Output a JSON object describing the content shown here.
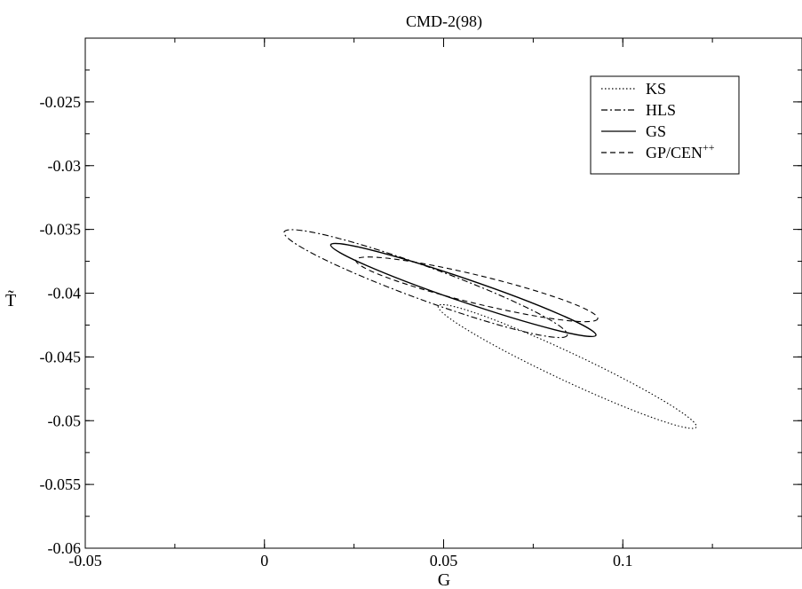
{
  "chart_data": {
    "type": "line",
    "title": "CMD-2(98)",
    "xlabel": "G",
    "ylabel": "T̃",
    "xlim": [
      -0.05,
      0.15
    ],
    "ylim": [
      -0.06,
      -0.02
    ],
    "x_ticks": [
      -0.05,
      0,
      0.05,
      0.1
    ],
    "x_tick_labels": [
      "-0.05",
      "0",
      "0.05",
      "0.1"
    ],
    "y_ticks": [
      -0.06,
      -0.055,
      -0.05,
      -0.045,
      -0.04,
      -0.035,
      -0.03,
      -0.025
    ],
    "y_tick_labels": [
      "-0.06",
      "-0.055",
      "-0.05",
      "-0.045",
      "-0.04",
      "-0.035",
      "-0.03",
      "-0.025"
    ],
    "grid": false,
    "legend_position": "top-right",
    "series": [
      {
        "name": "KS",
        "style": "dotted",
        "shape": "ellipse",
        "end_a": [
          0.0485,
          -0.041
        ],
        "end_b": [
          0.1205,
          -0.0505
        ],
        "half_width": 0.0011
      },
      {
        "name": "HLS",
        "style": "dashdot",
        "shape": "ellipse",
        "end_a": [
          0.0055,
          -0.0352
        ],
        "end_b": [
          0.0845,
          -0.0433
        ],
        "half_width": 0.0013
      },
      {
        "name": "GS",
        "style": "solid",
        "shape": "ellipse",
        "end_a": [
          0.0185,
          -0.0362
        ],
        "end_b": [
          0.0925,
          -0.0433
        ],
        "half_width": 0.0009
      },
      {
        "name": "GP/CEN",
        "name_superscript": "++",
        "style": "dashed",
        "shape": "ellipse",
        "end_a": [
          0.0255,
          -0.0374
        ],
        "end_b": [
          0.093,
          -0.042
        ],
        "half_width": 0.0011
      }
    ]
  }
}
